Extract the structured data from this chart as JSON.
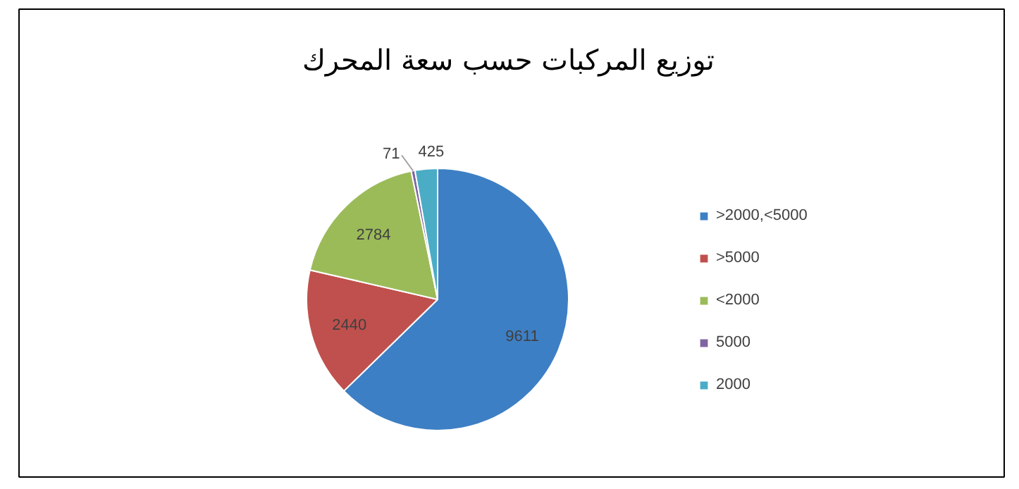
{
  "chart_data": {
    "type": "pie",
    "title": "توزيع المركبات حسب سعة المحرك",
    "categories": [
      ">2000,<5000",
      ">5000",
      "<2000",
      "5000",
      "2000"
    ],
    "values": [
      9611,
      2440,
      2784,
      71,
      425
    ],
    "colors": [
      "#3d7fc4",
      "#c0504d",
      "#9bbb59",
      "#8064a2",
      "#4bacc6"
    ],
    "data_labels": true,
    "legend": "right"
  }
}
